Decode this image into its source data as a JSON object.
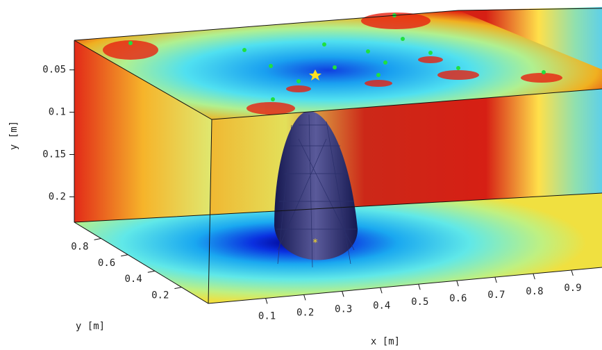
{
  "chart_data": {
    "type": "volume3d",
    "x_label": "x [m]",
    "y_label": "y [m]",
    "z_label": "y [m]",
    "xlim": [
      -0.05,
      0.98
    ],
    "xticks": [
      0.1,
      0.2,
      0.3,
      0.4,
      0.5,
      0.6,
      0.7,
      0.8,
      0.9
    ],
    "ylim": [
      0,
      1
    ],
    "yticks": [
      0.2,
      0.4,
      0.6,
      0.8
    ],
    "zlim": [
      0.015,
      0.23
    ],
    "zticks": [
      0.05,
      0.1,
      0.15,
      0.2
    ]
  }
}
